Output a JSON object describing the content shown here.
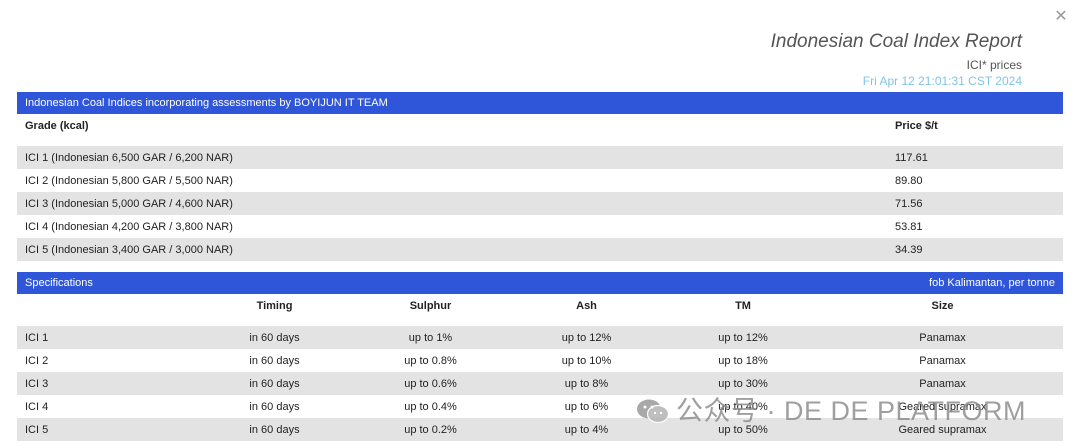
{
  "close_icon": "close-icon",
  "header": {
    "title": "Indonesian Coal Index Report",
    "subtitle": "ICI* prices",
    "date": "Fri Apr 12 21:01:31 CST 2024"
  },
  "prices": {
    "banner": "Indonesian Coal Indices incorporating assessments by BOYIJUN IT TEAM",
    "col_grade": "Grade (kcal)",
    "col_price": "Price $/t",
    "rows": [
      {
        "grade": "ICI 1 (Indonesian 6,500 GAR / 6,200 NAR)",
        "price": "117.61"
      },
      {
        "grade": "ICI 2 (Indonesian 5,800 GAR / 5,500 NAR)",
        "price": "89.80"
      },
      {
        "grade": "ICI 3 (Indonesian 5,000 GAR / 4,600 NAR)",
        "price": "71.56"
      },
      {
        "grade": "ICI 4 (Indonesian 4,200 GAR / 3,800 NAR)",
        "price": "53.81"
      },
      {
        "grade": "ICI 5 (Indonesian 3,400 GAR / 3,000 NAR)",
        "price": "34.39"
      }
    ]
  },
  "specs": {
    "banner": "Specifications",
    "banner_right": "fob Kalimantan, per tonne",
    "columns": [
      "",
      "Timing",
      "Sulphur",
      "Ash",
      "TM",
      "Size"
    ],
    "rows": [
      [
        "ICI 1",
        "in 60 days",
        "up to 1%",
        "up to 12%",
        "up to 12%",
        "Panamax"
      ],
      [
        "ICI 2",
        "in 60 days",
        "up to 0.8%",
        "up to 10%",
        "up to 18%",
        "Panamax"
      ],
      [
        "ICI 3",
        "in 60 days",
        "up to 0.6%",
        "up to 8%",
        "up to 30%",
        "Panamax"
      ],
      [
        "ICI 4",
        "in 60 days",
        "up to 0.4%",
        "up to 6%",
        "up to 40%",
        "Geared supramax"
      ],
      [
        "ICI 5",
        "in 60 days",
        "up to 0.2%",
        "up to 4%",
        "up to 50%",
        "Geared supramax"
      ]
    ]
  },
  "watermark": {
    "text": "公众号 · DE DE PLATFORM",
    "icon": "wechat-icon"
  },
  "colors": {
    "banner": "#2f55d9",
    "row_alt": "#e3e3e3",
    "date": "#7fc4ea"
  }
}
